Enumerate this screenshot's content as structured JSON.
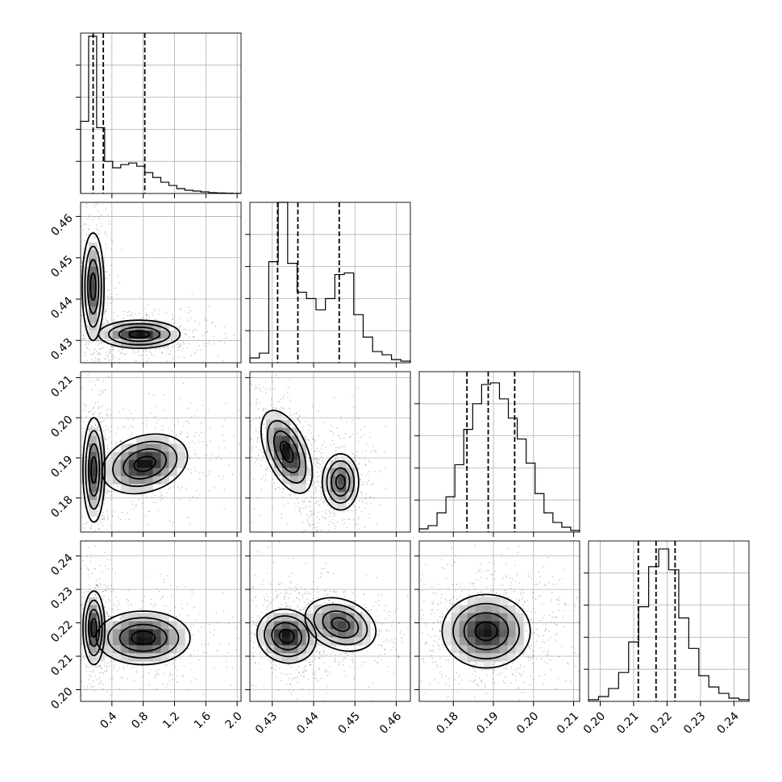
{
  "chart_data": {
    "type": "corner",
    "parameters": [
      {
        "range": [
          0.0,
          2.05
        ],
        "ticks": [
          0.4,
          0.8,
          1.2,
          1.6,
          2.0
        ],
        "tick_labels": [
          "0.4",
          "0.8",
          "1.2",
          "1.6",
          "2.0"
        ],
        "quantiles": [
          0.16,
          0.29,
          0.82
        ],
        "hist_heights": [
          0.45,
          0.98,
          0.41,
          0.2,
          0.16,
          0.18,
          0.19,
          0.17,
          0.13,
          0.1,
          0.07,
          0.05,
          0.03,
          0.02,
          0.015,
          0.01,
          0.005,
          0.003,
          0.002,
          0.001
        ]
      },
      {
        "range": [
          0.4246,
          0.4634
        ],
        "ticks": [
          0.43,
          0.44,
          0.45,
          0.46
        ],
        "tick_labels": [
          "0.43",
          "0.44",
          "0.45",
          "0.46"
        ],
        "quantiles": [
          0.4313,
          0.4362,
          0.4462
        ],
        "hist_heights": [
          0.03,
          0.06,
          0.63,
          1.0,
          0.62,
          0.44,
          0.4,
          0.33,
          0.4,
          0.55,
          0.56,
          0.3,
          0.16,
          0.07,
          0.05,
          0.02,
          0.01
        ]
      },
      {
        "range": [
          0.1715,
          0.2115
        ],
        "ticks": [
          0.18,
          0.19,
          0.2,
          0.21
        ],
        "tick_labels": [
          "0.18",
          "0.19",
          "0.20",
          "0.21"
        ],
        "quantiles": [
          0.1834,
          0.1887,
          0.1953
        ],
        "hist_heights": [
          0.02,
          0.04,
          0.12,
          0.22,
          0.42,
          0.64,
          0.8,
          0.92,
          0.93,
          0.83,
          0.71,
          0.58,
          0.43,
          0.24,
          0.12,
          0.06,
          0.03,
          0.01
        ]
      },
      {
        "range": [
          0.1965,
          0.2445
        ],
        "ticks": [
          0.2,
          0.21,
          0.22,
          0.23,
          0.24
        ],
        "tick_labels": [
          "0.20",
          "0.21",
          "0.22",
          "0.23",
          "0.24"
        ],
        "quantiles": [
          0.2114,
          0.2167,
          0.2224
        ],
        "hist_heights": [
          0.01,
          0.03,
          0.08,
          0.18,
          0.37,
          0.59,
          0.84,
          0.95,
          0.82,
          0.52,
          0.33,
          0.16,
          0.09,
          0.05,
          0.02,
          0.01
        ]
      }
    ],
    "pairs": [
      {
        "row": 1,
        "col": 0,
        "clusters": [
          {
            "mx": 0.16,
            "my": 0.443,
            "sx": 0.07,
            "sy": 0.0065,
            "w": 0.45,
            "rot": 0
          },
          {
            "mx": 0.75,
            "my": 0.4315,
            "sx": 0.26,
            "sy": 0.0017,
            "w": 0.55,
            "rot": 0
          }
        ]
      },
      {
        "row": 2,
        "col": 0,
        "clusters": [
          {
            "mx": 0.17,
            "my": 0.187,
            "sx": 0.07,
            "sy": 0.0065,
            "w": 0.45,
            "rot": 0
          },
          {
            "mx": 0.82,
            "my": 0.1885,
            "sx": 0.28,
            "sy": 0.0035,
            "w": 0.55,
            "rot": 0.3
          }
        ]
      },
      {
        "row": 3,
        "col": 0,
        "clusters": [
          {
            "mx": 0.17,
            "my": 0.2185,
            "sx": 0.07,
            "sy": 0.0055,
            "w": 0.45,
            "rot": 0
          },
          {
            "mx": 0.8,
            "my": 0.2155,
            "sx": 0.3,
            "sy": 0.004,
            "w": 0.55,
            "rot": 0
          }
        ]
      },
      {
        "row": 2,
        "col": 1,
        "clusters": [
          {
            "mx": 0.4335,
            "my": 0.1915,
            "sx": 0.0025,
            "sy": 0.0055,
            "w": 0.55,
            "rot": 0.4
          },
          {
            "mx": 0.4465,
            "my": 0.184,
            "sx": 0.0022,
            "sy": 0.0035,
            "w": 0.45,
            "rot": 0
          }
        ]
      },
      {
        "row": 3,
        "col": 1,
        "clusters": [
          {
            "mx": 0.4335,
            "my": 0.216,
            "sx": 0.0032,
            "sy": 0.0045,
            "w": 0.55,
            "rot": 1.2
          },
          {
            "mx": 0.4465,
            "my": 0.2195,
            "sx": 0.003,
            "sy": 0.0055,
            "w": 0.45,
            "rot": 1.2
          }
        ]
      },
      {
        "row": 3,
        "col": 2,
        "clusters": [
          {
            "mx": 0.1882,
            "my": 0.2175,
            "sx": 0.0055,
            "sy": 0.0055,
            "w": 1.0,
            "rot": 0
          }
        ]
      }
    ]
  }
}
